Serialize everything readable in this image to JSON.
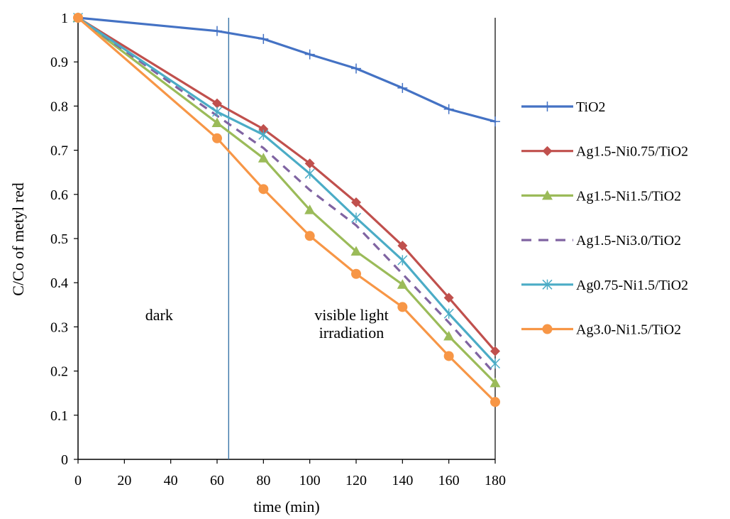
{
  "chart_data": {
    "type": "line",
    "title": "",
    "xlabel": "time (min)",
    "ylabel": "C/Co of metyl red",
    "x": [
      0,
      60,
      80,
      100,
      120,
      140,
      160,
      180
    ],
    "xlim": [
      0,
      180
    ],
    "ylim": [
      0,
      1
    ],
    "xticks": [
      "0",
      "20",
      "40",
      "60",
      "80",
      "100",
      "120",
      "140",
      "160",
      "180"
    ],
    "yticks": [
      "0",
      "0.1",
      "0.2",
      "0.3",
      "0.4",
      "0.5",
      "0.6",
      "0.7",
      "0.8",
      "0.9",
      "1"
    ],
    "grid": false,
    "legend_position": "right",
    "vertical_line_x": 65,
    "annotations": [
      {
        "text": "dark",
        "x": 35,
        "y": 0.315
      },
      {
        "text": "visible light",
        "x": 118,
        "y": 0.315
      },
      {
        "text": "irradiation",
        "x": 118,
        "y": 0.275
      }
    ],
    "series": [
      {
        "name": "TiO2",
        "color": "#4472c4",
        "marker": "plus",
        "dash": false,
        "values": [
          1.0,
          0.97,
          0.952,
          0.917,
          0.885,
          0.841,
          0.793,
          0.765
        ]
      },
      {
        "name": "Ag1.5-Ni0.75/TiO2",
        "color": "#c0504d",
        "marker": "diamond",
        "dash": false,
        "values": [
          1.0,
          0.806,
          0.748,
          0.67,
          0.582,
          0.484,
          0.366,
          0.245
        ]
      },
      {
        "name": "Ag1.5-Ni1.5/TiO2",
        "color": "#9bbb59",
        "marker": "triangle",
        "dash": false,
        "values": [
          1.0,
          0.762,
          0.682,
          0.565,
          0.471,
          0.396,
          0.279,
          0.173
        ]
      },
      {
        "name": "Ag1.5-Ni3.0/TiO2",
        "color": "#8064a2",
        "marker": "none",
        "dash": true,
        "values": [
          1.0,
          0.778,
          0.705,
          0.61,
          0.53,
          0.42,
          0.31,
          0.193
        ]
      },
      {
        "name": "Ag0.75-Ni1.5/TiO2",
        "color": "#4bacc6",
        "marker": "star",
        "dash": false,
        "values": [
          1.0,
          0.787,
          0.735,
          0.647,
          0.547,
          0.451,
          0.33,
          0.217
        ]
      },
      {
        "name": "Ag3.0-Ni1.5/TiO2",
        "color": "#f79646",
        "marker": "circle",
        "dash": false,
        "values": [
          1.0,
          0.727,
          0.612,
          0.506,
          0.42,
          0.345,
          0.234,
          0.13
        ]
      }
    ]
  }
}
